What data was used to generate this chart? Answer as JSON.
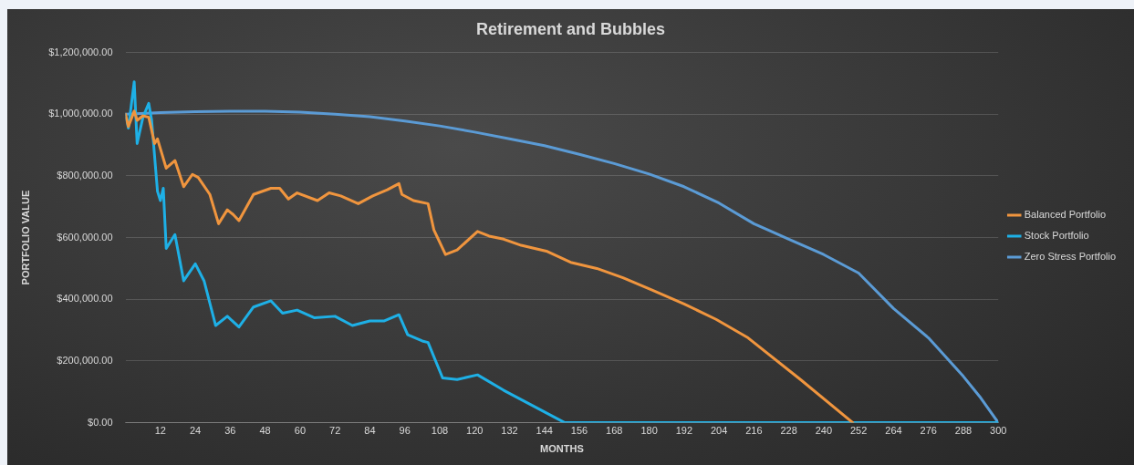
{
  "chart_data": {
    "type": "line",
    "title": "Retirement and Bubbles",
    "xlabel": "MONTHS",
    "ylabel": "PORTFOLIO VALUE",
    "xlim": [
      0,
      300
    ],
    "xticks": [
      12,
      24,
      36,
      48,
      60,
      72,
      84,
      96,
      108,
      120,
      132,
      144,
      156,
      168,
      180,
      192,
      204,
      216,
      228,
      240,
      252,
      264,
      276,
      288,
      300
    ],
    "ylim": [
      0,
      1200000
    ],
    "yticks": [
      {
        "value": 0,
        "label": "$0.00"
      },
      {
        "value": 200000,
        "label": "$200,000.00"
      },
      {
        "value": 400000,
        "label": "$400,000.00"
      },
      {
        "value": 600000,
        "label": "$600,000.00"
      },
      {
        "value": 800000,
        "label": "$800,000.00"
      },
      {
        "value": 1000000,
        "label": "$1,000,000.00"
      },
      {
        "value": 1200000,
        "label": "$1,200,000.00"
      }
    ],
    "grid": "y",
    "legend": "right",
    "marker": "none",
    "line_style": "solid",
    "series": [
      {
        "name": "Balanced Portfolio",
        "color": "#f0953e",
        "x": [
          0,
          1,
          3,
          4,
          6,
          8,
          10,
          11,
          14,
          17,
          20,
          23,
          25,
          29,
          32,
          35,
          37,
          39,
          44,
          50,
          53,
          56,
          59,
          66,
          70,
          74,
          80,
          85,
          90,
          94,
          95,
          99,
          104,
          106,
          110,
          114,
          121,
          125,
          130,
          136,
          145,
          153,
          162,
          171,
          181,
          192,
          203,
          214,
          232,
          250
        ],
        "values": [
          1000000,
          960000,
          1010000,
          980000,
          995000,
          990000,
          905000,
          920000,
          825000,
          850000,
          765000,
          805000,
          795000,
          740000,
          645000,
          690000,
          675000,
          655000,
          740000,
          760000,
          760000,
          725000,
          745000,
          720000,
          745000,
          735000,
          710000,
          735000,
          755000,
          775000,
          740000,
          720000,
          710000,
          625000,
          545000,
          560000,
          620000,
          605000,
          595000,
          575000,
          555000,
          520000,
          500000,
          470000,
          430000,
          385000,
          335000,
          275000,
          140000,
          0
        ]
      },
      {
        "name": "Stock Portfolio",
        "color": "#1eb0e6",
        "x": [
          0,
          1,
          3,
          4,
          6,
          8,
          9,
          11,
          12,
          13,
          14,
          17,
          20,
          24,
          27,
          31,
          35,
          39,
          44,
          50,
          54,
          59,
          65,
          72,
          78,
          84,
          89,
          94,
          97,
          102,
          104,
          109,
          114,
          121,
          130,
          138,
          151,
          300
        ],
        "values": [
          1000000,
          955000,
          1105000,
          905000,
          990000,
          1035000,
          980000,
          750000,
          720000,
          760000,
          565000,
          610000,
          460000,
          515000,
          460000,
          315000,
          345000,
          310000,
          375000,
          395000,
          355000,
          365000,
          340000,
          345000,
          315000,
          330000,
          330000,
          350000,
          285000,
          265000,
          260000,
          145000,
          140000,
          155000,
          105000,
          65000,
          0,
          0
        ]
      },
      {
        "name": "Zero Stress Portfolio",
        "color": "#5b9bd5",
        "x": [
          0,
          12,
          24,
          36,
          48,
          60,
          72,
          84,
          96,
          108,
          120,
          132,
          144,
          156,
          168,
          180,
          192,
          204,
          216,
          228,
          240,
          252,
          264,
          276,
          288,
          294,
          300
        ],
        "values": [
          1000000,
          1005000,
          1008000,
          1010000,
          1010000,
          1007000,
          1000000,
          992000,
          978000,
          962000,
          942000,
          920000,
          898000,
          870000,
          840000,
          806000,
          765000,
          712000,
          645000,
          595000,
          545000,
          485000,
          370000,
          275000,
          150000,
          80000,
          0
        ]
      }
    ]
  }
}
